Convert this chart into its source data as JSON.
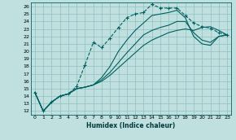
{
  "xlabel": "Humidex (Indice chaleur)",
  "ylabel": "",
  "bg_color": "#c0e0e0",
  "grid_color": "#90c0c0",
  "line_color": "#006060",
  "xlim": [
    -0.5,
    23.5
  ],
  "ylim": [
    11.5,
    26.5
  ],
  "xticks": [
    0,
    1,
    2,
    3,
    4,
    5,
    6,
    7,
    8,
    9,
    10,
    11,
    12,
    13,
    14,
    15,
    16,
    17,
    18,
    19,
    20,
    21,
    22,
    23
  ],
  "yticks": [
    12,
    13,
    14,
    15,
    16,
    17,
    18,
    19,
    20,
    21,
    22,
    23,
    24,
    25,
    26
  ],
  "series": [
    {
      "x": [
        0,
        1,
        2,
        3,
        4,
        5,
        6,
        7,
        8,
        9,
        10,
        11,
        12,
        13,
        14,
        15,
        16,
        17,
        18,
        19,
        20,
        21,
        22,
        23
      ],
      "y": [
        14.5,
        12.0,
        13.2,
        14.0,
        14.3,
        15.3,
        18.2,
        21.2,
        20.5,
        21.8,
        23.2,
        24.5,
        25.0,
        25.2,
        26.3,
        25.8,
        25.8,
        25.8,
        24.8,
        23.8,
        23.3,
        23.1,
        22.5,
        22.2
      ],
      "ls": "--",
      "marker": "+",
      "ms": 3.5,
      "lw": 0.8
    },
    {
      "x": [
        0,
        1,
        2,
        3,
        4,
        5,
        6,
        7,
        8,
        9,
        10,
        11,
        12,
        13,
        14,
        15,
        16,
        17,
        18,
        19,
        20,
        21,
        22,
        23
      ],
      "y": [
        14.5,
        12.0,
        13.2,
        14.0,
        14.3,
        15.0,
        15.2,
        15.5,
        16.0,
        16.8,
        17.8,
        18.8,
        19.8,
        20.8,
        21.5,
        22.0,
        22.5,
        22.8,
        23.0,
        22.8,
        23.2,
        23.3,
        22.8,
        22.2
      ],
      "ls": "-",
      "marker": null,
      "ms": 0,
      "lw": 0.8
    },
    {
      "x": [
        0,
        1,
        2,
        3,
        4,
        5,
        6,
        7,
        8,
        9,
        10,
        11,
        12,
        13,
        14,
        15,
        16,
        17,
        18,
        19,
        20,
        21,
        22,
        23
      ],
      "y": [
        14.5,
        12.0,
        13.2,
        14.0,
        14.3,
        15.0,
        15.2,
        15.5,
        16.2,
        17.2,
        18.5,
        19.8,
        21.0,
        22.2,
        22.8,
        23.2,
        23.5,
        24.0,
        24.0,
        22.5,
        21.5,
        21.2,
        22.0,
        22.2
      ],
      "ls": "-",
      "marker": null,
      "ms": 0,
      "lw": 0.8
    },
    {
      "x": [
        0,
        1,
        2,
        3,
        4,
        5,
        6,
        7,
        8,
        9,
        10,
        11,
        12,
        13,
        14,
        15,
        16,
        17,
        18,
        19,
        20,
        21,
        22,
        23
      ],
      "y": [
        14.5,
        12.0,
        13.2,
        14.0,
        14.3,
        15.0,
        15.2,
        15.5,
        16.5,
        18.0,
        20.0,
        21.5,
        22.8,
        23.8,
        24.8,
        25.0,
        25.2,
        25.5,
        24.5,
        22.0,
        21.0,
        20.8,
        22.0,
        22.2
      ],
      "ls": "-",
      "marker": null,
      "ms": 0,
      "lw": 0.8
    }
  ]
}
